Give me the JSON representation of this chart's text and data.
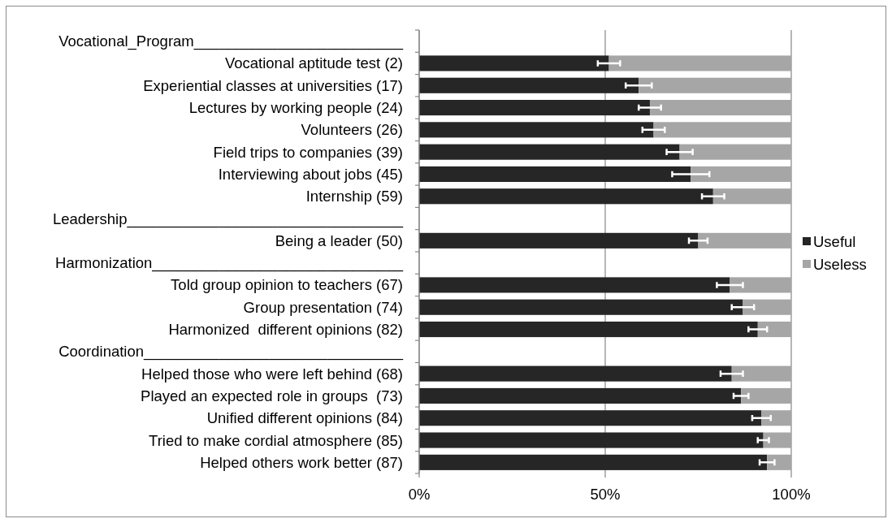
{
  "chart_data": {
    "type": "bar",
    "orientation": "horizontal",
    "stacked": true,
    "categories": [
      "Vocational_Program_________________________",
      "Vocational aptitude test (2)",
      "Experiential classes at universities (17)",
      "Lectures by working people (24)",
      "Volunteers (26)",
      "Field trips to companies (39)",
      "Interviewing about jobs (45)",
      "Internship (59)",
      "Leadership_________________________________",
      "Being a leader (50)",
      "Harmonization______________________________",
      "Told group opinion to teachers (67)",
      "Group presentation (74)",
      "Harmonized  different opinions (82)",
      "Coordination_______________________________",
      "Helped those who were left behind (68)",
      "Played an expected role in groups  (73)",
      "Unified different opinions (84)",
      "Tried to make cordial atmosphere (85)",
      "Helped others work better (87)"
    ],
    "series": [
      {
        "name": "Useful",
        "color": "#262626",
        "values": [
          null,
          51,
          59,
          62,
          63,
          70,
          73,
          79,
          null,
          75,
          null,
          83.5,
          87,
          91,
          null,
          84,
          86.5,
          92,
          92.5,
          93.5
        ],
        "errors": [
          null,
          3,
          3.5,
          3,
          3,
          3.5,
          5,
          3,
          null,
          2.5,
          null,
          3.5,
          3,
          2.5,
          null,
          3,
          2,
          2.5,
          1.5,
          2
        ]
      },
      {
        "name": "Useless",
        "color": "#a6a6a6",
        "values": [
          null,
          49,
          41,
          38,
          37,
          30,
          27,
          21,
          null,
          25,
          null,
          16.5,
          13,
          9,
          null,
          16,
          13.5,
          8,
          7.5,
          6.5
        ]
      }
    ],
    "xlim": [
      0,
      100
    ],
    "xticks": [
      {
        "value": 0,
        "label": "0%"
      },
      {
        "value": 50,
        "label": "50%"
      },
      {
        "value": 100,
        "label": "100%"
      }
    ],
    "grid": "x",
    "legend": "right"
  }
}
